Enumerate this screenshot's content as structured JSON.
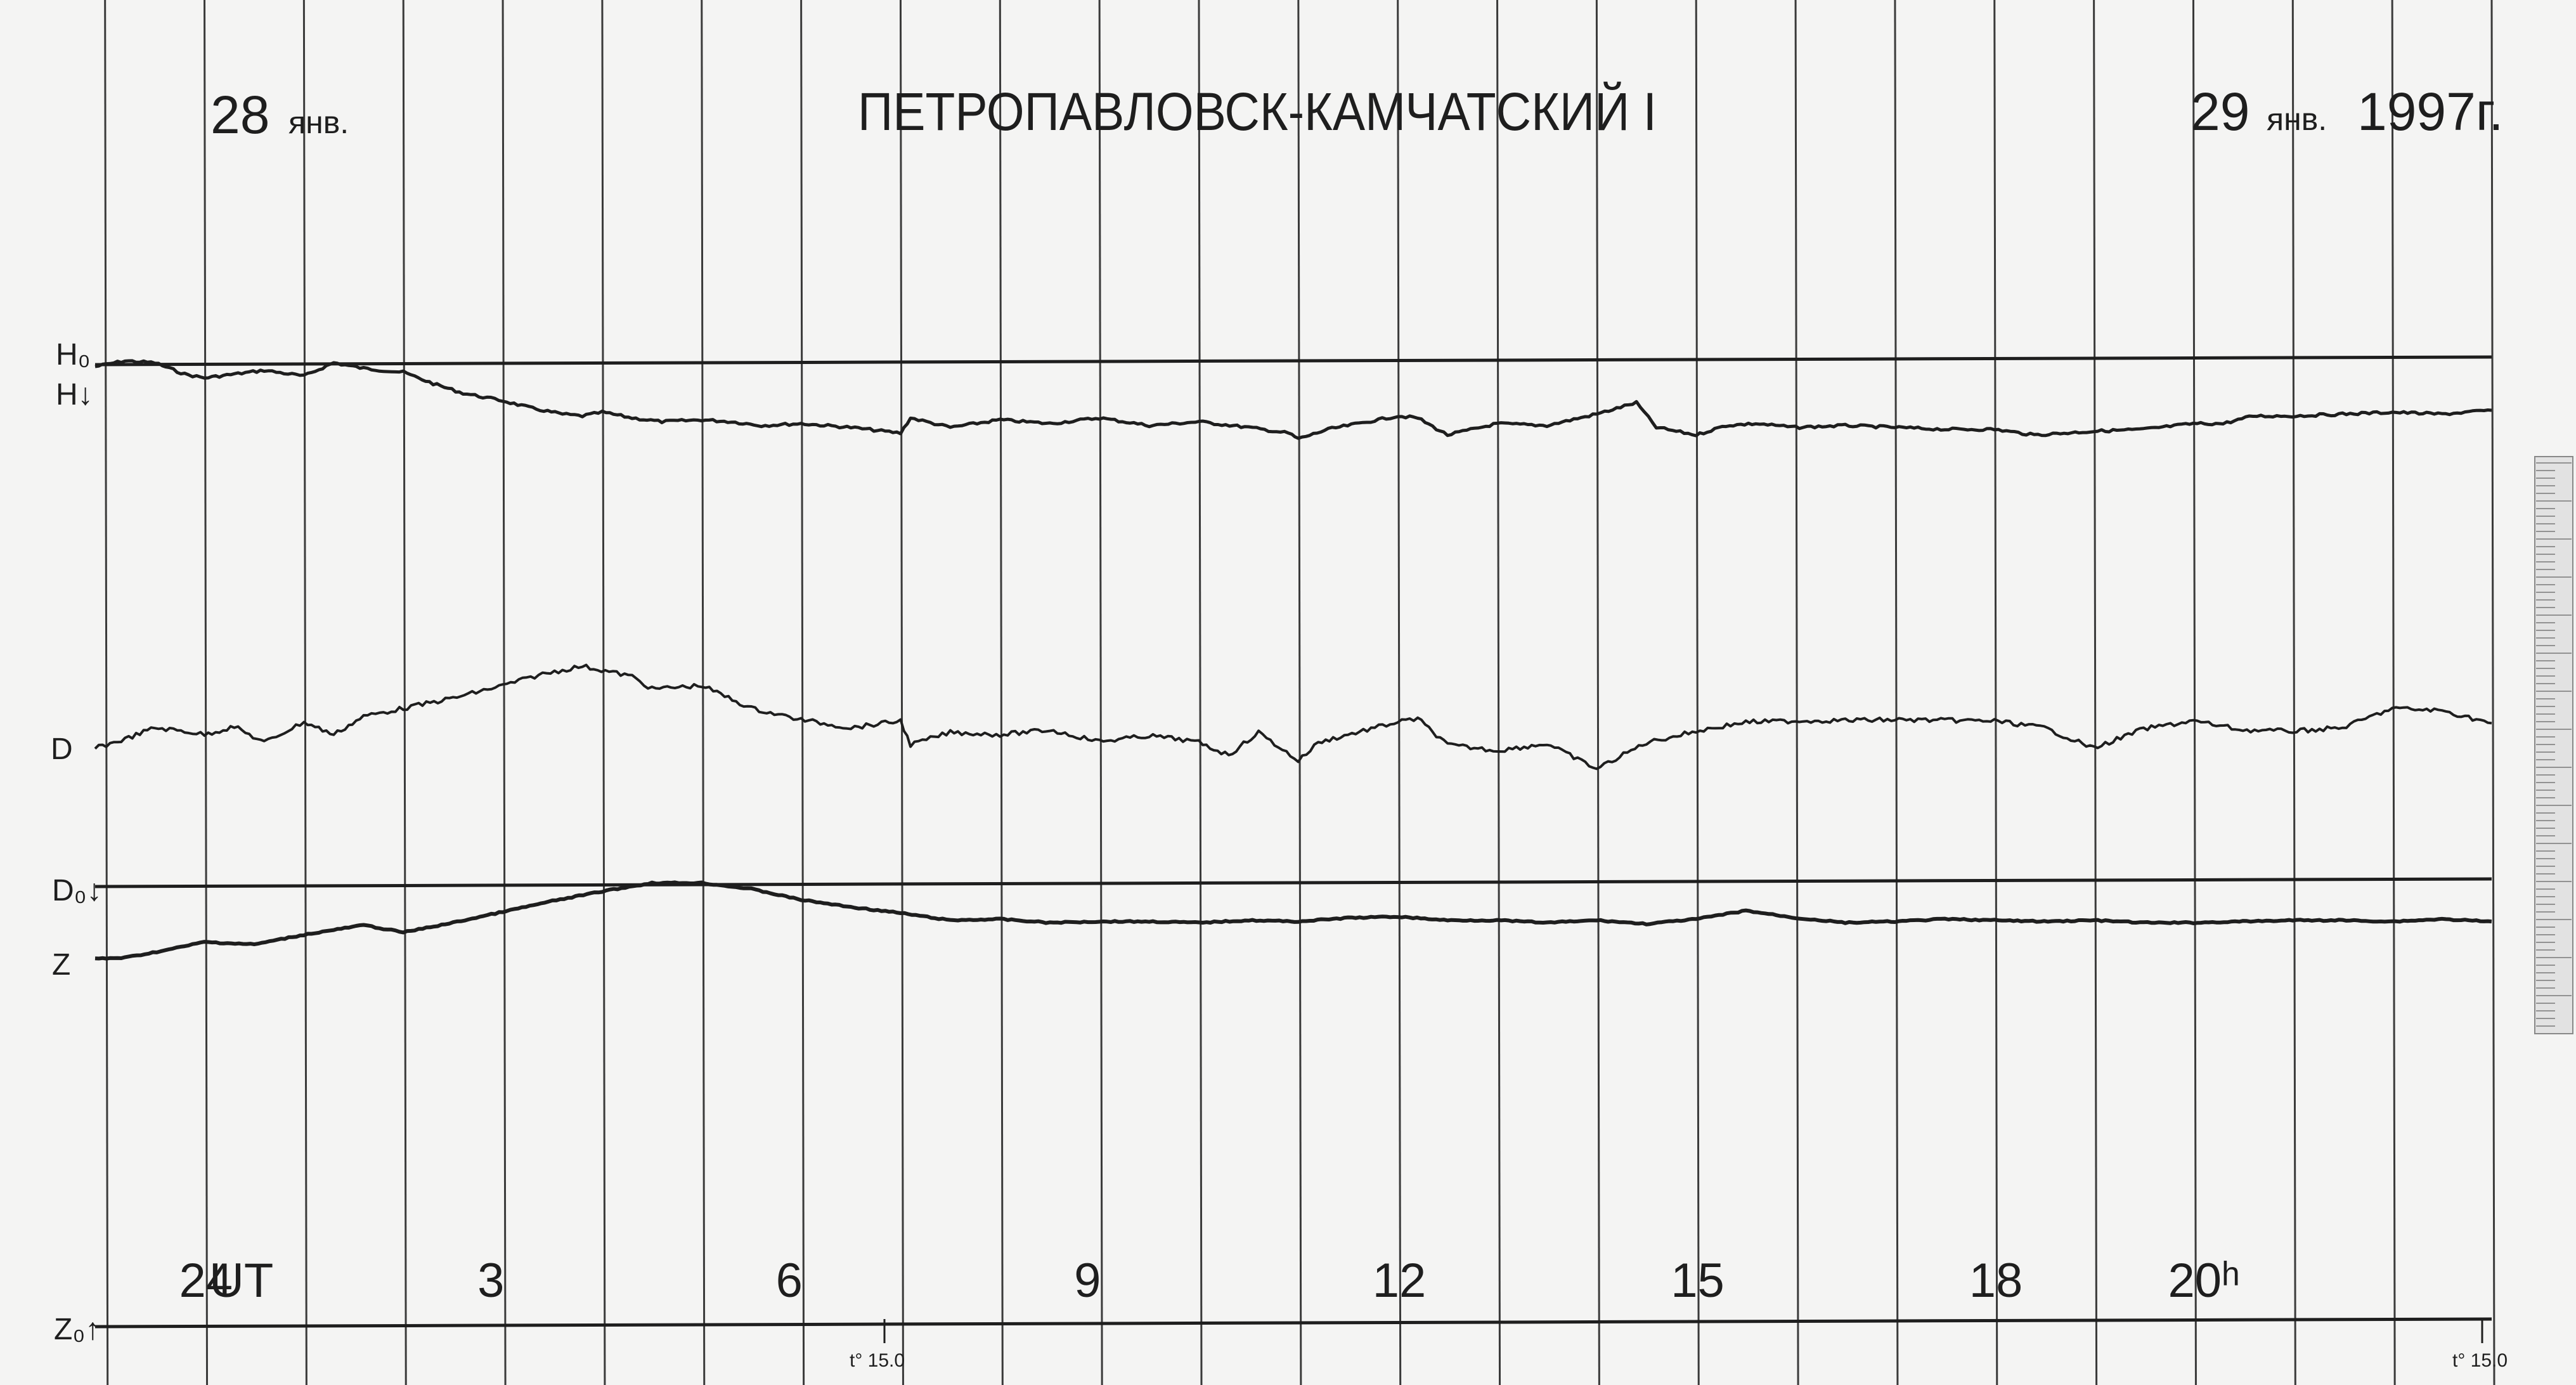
{
  "header": {
    "start_day": "28",
    "start_month": "янв.",
    "station": "ПЕТРОПАВЛОВСК-КАМЧАТСКИЙ I",
    "end_day": "29",
    "end_month": "янв.",
    "end_year": "1997г."
  },
  "channels": {
    "H0": "H₀",
    "H": "H↓",
    "D": "D",
    "D0": "D₀↓",
    "Z": "Z",
    "Z0": "Z₀↑"
  },
  "temperature_marks": [
    "t° 15.0",
    "t° 15.0"
  ],
  "colors": {
    "paper": "#f4f4f3",
    "ink": "#1e1e1e",
    "hour_lines": "#3a3a3a"
  },
  "chart_data": {
    "type": "line",
    "title": "ПЕТРОПАВЛОВСК-КАМЧАТСКИЙ I",
    "xlabel": "UT",
    "x_tick_labels": [
      "24",
      "3",
      "6",
      "9",
      "12",
      "15",
      "18",
      "20ʰ"
    ],
    "x_ticks_hours": [
      24,
      27,
      30,
      33,
      36,
      39,
      42,
      44
    ],
    "xlim_hours": [
      22.9,
      47
    ],
    "hour_grid": "vertical line every hour",
    "y_units": "relative trace deflection (0 = baseline, positive = upward on record)",
    "series": [
      {
        "name": "H",
        "x": [
          22.9,
          23.2,
          23.5,
          23.8,
          24.0,
          24.3,
          24.6,
          25.0,
          25.3,
          25.6,
          26.0,
          26.3,
          26.6,
          27.0,
          27.3,
          27.6,
          27.8,
          28.0,
          28.3,
          28.6,
          29.0,
          29.3,
          29.6,
          30.0,
          30.5,
          31.0,
          31.1,
          31.5,
          32.0,
          32.5,
          33.0,
          33.5,
          34.0,
          34.5,
          34.9,
          35.0,
          35.3,
          36.0,
          36.2,
          36.5,
          37.0,
          37.5,
          38.0,
          38.4,
          38.6,
          39.0,
          39.3,
          39.6,
          40.0,
          40.5,
          41.0,
          41.5,
          42.0,
          42.4,
          43.0,
          43.5,
          44.0,
          44.3,
          44.6,
          45.0,
          45.5,
          46.0,
          46.5,
          47.0
        ],
        "values": [
          0,
          0.3,
          0.2,
          -0.4,
          -0.6,
          -0.4,
          -0.2,
          -0.5,
          0.2,
          -0.1,
          -0.3,
          -0.9,
          -1.4,
          -1.8,
          -2.2,
          -2.5,
          -2.6,
          -2.4,
          -2.7,
          -2.9,
          -2.8,
          -2.9,
          -3.1,
          -3.0,
          -3.2,
          -3.5,
          -2.7,
          -3.2,
          -2.8,
          -3.0,
          -2.7,
          -3.1,
          -2.9,
          -3.2,
          -3.5,
          -3.8,
          -3.3,
          -2.6,
          -2.7,
          -3.6,
          -3.0,
          -3.1,
          -2.5,
          -1.9,
          -3.2,
          -3.6,
          -3.1,
          -3.0,
          -3.2,
          -3.1,
          -3.2,
          -3.3,
          -3.3,
          -3.6,
          -3.4,
          -3.3,
          -3.0,
          -3.0,
          -2.6,
          -2.6,
          -2.5,
          -2.4,
          -2.5,
          -2.3
        ]
      },
      {
        "name": "D",
        "x": [
          22.9,
          23.2,
          23.5,
          23.8,
          24.0,
          24.3,
          24.6,
          25.0,
          25.3,
          25.6,
          26.0,
          26.5,
          27.0,
          27.4,
          27.8,
          28.3,
          28.5,
          29.0,
          29.5,
          30.0,
          30.5,
          31.0,
          31.1,
          31.5,
          32.0,
          32.5,
          33.0,
          33.5,
          33.8,
          34.0,
          34.3,
          34.6,
          35.0,
          35.2,
          35.5,
          36.0,
          36.2,
          36.5,
          37.0,
          37.5,
          38.0,
          38.5,
          39.0,
          39.5,
          40.0,
          41.0,
          42.0,
          42.5,
          43.0,
          43.5,
          44.0,
          44.5,
          45.0,
          45.5,
          46.0,
          46.5,
          47.0
        ],
        "values": [
          0,
          0.8,
          1.8,
          1.5,
          1.2,
          1.9,
          0.5,
          2.3,
          1.2,
          2.8,
          3.5,
          4.4,
          5.5,
          6.5,
          7.2,
          6.3,
          5.2,
          5.5,
          3.5,
          2.5,
          1.8,
          2.4,
          0.3,
          1.4,
          1.2,
          1.6,
          0.6,
          1.1,
          0.8,
          0.5,
          -0.6,
          1.4,
          -1.1,
          0.5,
          1.2,
          2.3,
          2.6,
          0.3,
          -0.2,
          0.4,
          -1.8,
          0.5,
          1.5,
          2.3,
          2.4,
          2.5,
          2.4,
          1.8,
          0.0,
          1.7,
          2.4,
          1.6,
          1.5,
          1.8,
          3.5,
          3.3,
          2.2
        ]
      },
      {
        "name": "Z",
        "x": [
          22.9,
          23.2,
          23.6,
          24.0,
          24.5,
          25.0,
          25.6,
          26.0,
          26.5,
          27.0,
          27.5,
          28.0,
          28.5,
          29.0,
          29.5,
          30.0,
          30.5,
          31.0,
          31.5,
          32.0,
          32.5,
          33.0,
          33.5,
          34.0,
          34.5,
          35.0,
          35.5,
          36.0,
          36.5,
          37.0,
          37.5,
          38.0,
          38.5,
          39.0,
          39.5,
          40.0,
          40.5,
          41.0,
          41.5,
          42.0,
          42.5,
          43.0,
          43.5,
          44.0,
          44.5,
          45.0,
          45.5,
          46.0,
          46.5,
          47.0
        ],
        "values": [
          0,
          0.1,
          0.7,
          1.4,
          1.2,
          2.0,
          2.8,
          2.2,
          3.0,
          3.9,
          4.8,
          5.6,
          6.3,
          6.3,
          5.8,
          4.9,
          4.3,
          3.8,
          3.2,
          3.3,
          3.0,
          3.1,
          3.1,
          3.0,
          3.2,
          3.1,
          3.4,
          3.5,
          3.2,
          3.2,
          3.0,
          3.2,
          2.9,
          3.3,
          4.0,
          3.4,
          3.0,
          3.1,
          3.3,
          3.2,
          3.1,
          3.2,
          3.0,
          3.0,
          3.1,
          3.2,
          3.2,
          3.1,
          3.3,
          3.1
        ]
      }
    ],
    "baselines": [
      "H₀",
      "D₀",
      "Z₀"
    ]
  }
}
